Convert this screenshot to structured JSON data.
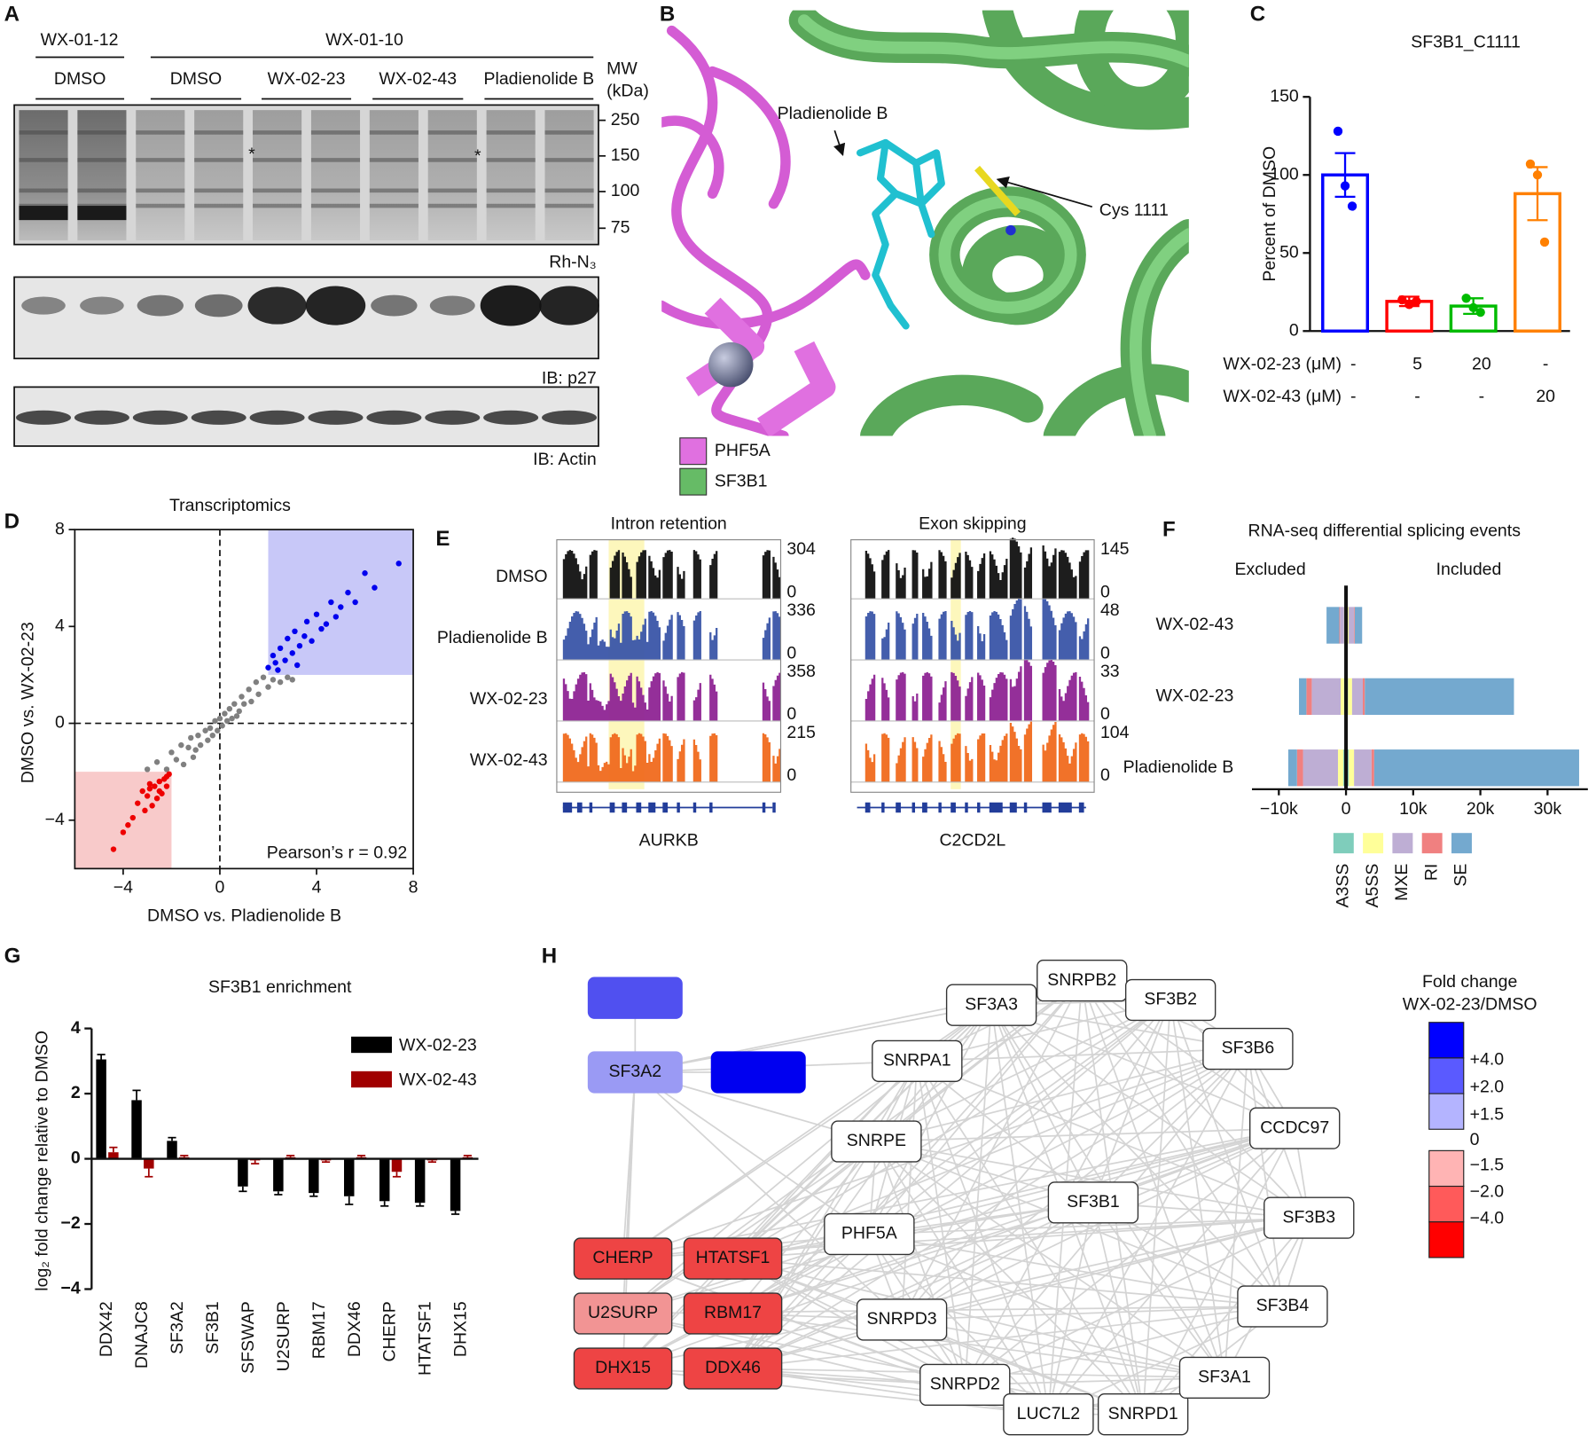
{
  "panel_labels": [
    "A",
    "B",
    "C",
    "D",
    "E",
    "F",
    "G",
    "H"
  ],
  "blot": {
    "top_groups": [
      "WX-01-12",
      "WX-01-10"
    ],
    "treatments": [
      "DMSO",
      "DMSO",
      "WX-02-23",
      "WX-02-43",
      "Pladienolide B"
    ],
    "mw_title": [
      "MW",
      "(kDa)"
    ],
    "mw_ticks": [
      250,
      150,
      100,
      75
    ],
    "markers": [
      "*",
      "*"
    ],
    "blot_labels": [
      "Rh-N₃",
      "IB: p27",
      "IB: Actin"
    ]
  },
  "structure": {
    "labels": [
      "Pladienolide B",
      "Cys 1111"
    ],
    "legend": [
      {
        "name": "PHF5A",
        "color": "#e070e0"
      },
      {
        "name": "SF3B1",
        "color": "#66bb66"
      }
    ]
  },
  "chart_data": [
    {
      "type": "bar",
      "title": "SF3B1_C1111",
      "y_label": "Percent of DMSO",
      "categories": [
        null,
        null,
        null,
        null
      ],
      "values": [
        100,
        19,
        16,
        88
      ],
      "errors": [
        14,
        3,
        5,
        17
      ],
      "points": [
        [
          128,
          93,
          80
        ],
        [
          20,
          17,
          19
        ],
        [
          21,
          15,
          12
        ],
        [
          107,
          100,
          57
        ]
      ],
      "colors": [
        "#0000ff",
        "#ff0000",
        "#00bb00",
        "#ff8000"
      ],
      "ylim": [
        0,
        150
      ],
      "yticks": [
        0,
        50,
        100,
        150
      ],
      "conditions": [
        {
          "name": "WX-02-23 (μM)",
          "values": [
            "-",
            "5",
            "20",
            "-"
          ]
        },
        {
          "name": "WX-02-43 (μM)",
          "values": [
            "-",
            "-",
            "-",
            "20"
          ]
        }
      ]
    },
    {
      "type": "scatter",
      "title": "Transcriptomics",
      "x_label": "DMSO vs. Pladienolide B",
      "y_label": "DMSO vs. WX-02-23",
      "annotation": "Pearson’s r = 0.92",
      "xlim": [
        -6,
        8
      ],
      "ylim": [
        -6,
        8
      ],
      "xticks": [
        {
          "value": -4,
          "label": "−4"
        },
        0,
        4,
        8
      ],
      "yticks": [
        {
          "value": -4,
          "label": "−4"
        },
        0,
        4,
        8
      ],
      "regions": [
        {
          "xlim": [
            2,
            8
          ],
          "ylim": [
            2,
            8
          ],
          "color": "#c8c8f8"
        },
        {
          "xlim": [
            -6,
            -2
          ],
          "ylim": [
            -6,
            -2
          ],
          "color": "#f8caca"
        }
      ],
      "series": [
        {
          "color": "#808080",
          "x": [
            -2.6,
            -2.2,
            -2.0,
            -1.8,
            -1.6,
            -1.5,
            -1.3,
            -1.2,
            -1.0,
            -0.9,
            -0.8,
            -0.6,
            -0.5,
            -0.4,
            -0.3,
            -0.2,
            -0.1,
            0,
            0.1,
            0.2,
            0.3,
            0.4,
            0.5,
            0.6,
            0.8,
            0.9,
            1.0,
            1.2,
            1.3,
            1.5,
            1.6,
            1.8,
            2.0,
            2.2,
            2.5,
            2.8,
            3.0,
            -3.0,
            -1.1,
            0.7
          ],
          "y": [
            -1.6,
            -1.9,
            -1.2,
            -1.5,
            -0.9,
            -1.7,
            -1.0,
            -0.6,
            -1.1,
            -0.5,
            -0.9,
            -0.3,
            -0.7,
            -0.2,
            -0.5,
            0.1,
            -0.3,
            0.2,
            -0.1,
            0.4,
            0.1,
            0.6,
            0.2,
            0.8,
            0.5,
            1.1,
            0.8,
            1.4,
            0.9,
            1.7,
            1.2,
            1.9,
            1.5,
            1.8,
            1.7,
            1.9,
            1.8,
            -1.9,
            -1.4,
            0.3
          ]
        },
        {
          "color": "#0000ee",
          "x": [
            2.0,
            2.2,
            2.4,
            2.5,
            2.7,
            2.8,
            3.0,
            3.1,
            3.3,
            3.5,
            3.6,
            3.8,
            4.0,
            4.2,
            4.4,
            4.6,
            4.8,
            5.0,
            5.3,
            5.6,
            6.0,
            6.4,
            7.4,
            2.3,
            3.2
          ],
          "y": [
            2.3,
            2.8,
            2.2,
            3.1,
            2.6,
            3.5,
            2.9,
            3.8,
            3.2,
            3.6,
            4.2,
            3.4,
            4.5,
            3.9,
            4.1,
            5.0,
            4.4,
            4.8,
            5.4,
            5.0,
            6.2,
            5.6,
            6.6,
            2.5,
            2.4
          ]
        },
        {
          "color": "#ee0000",
          "x": [
            -2.1,
            -2.2,
            -2.3,
            -2.4,
            -2.5,
            -2.6,
            -2.7,
            -2.8,
            -2.9,
            -3.0,
            -3.1,
            -3.2,
            -3.4,
            -3.6,
            -3.8,
            -4.0,
            -4.4,
            -2.2,
            -2.5,
            -2.9
          ],
          "y": [
            -2.1,
            -2.6,
            -2.3,
            -2.9,
            -2.4,
            -3.1,
            -2.6,
            -3.4,
            -2.7,
            -3.0,
            -3.6,
            -2.8,
            -3.3,
            -3.9,
            -4.2,
            -4.5,
            -5.2,
            -2.2,
            -2.8,
            -2.5
          ]
        }
      ]
    },
    {
      "type": "hbar",
      "title": "RNA-seq differential splicing events",
      "side_labels": [
        "Excluded",
        "Included"
      ],
      "categories": [
        "WX-02-43",
        "WX-02-23",
        "Pladienolide B"
      ],
      "xlim": [
        -14000,
        36000
      ],
      "xticks": [
        {
          "value": -10000,
          "label": "−10k"
        },
        0,
        {
          "value": 10000,
          "label": "10k"
        },
        {
          "value": 20000,
          "label": "20k"
        },
        {
          "value": 30000,
          "label": "30k"
        }
      ],
      "series": [
        {
          "name": "A3SS",
          "color": "#7fcdbb",
          "included": [
            100,
            300,
            400
          ],
          "excluded": [
            -100,
            -300,
            -400
          ]
        },
        {
          "name": "A5SS",
          "color": "#ffff99",
          "included": [
            300,
            600,
            800
          ],
          "excluded": [
            -200,
            -500,
            -800
          ]
        },
        {
          "name": "MXE",
          "color": "#beaed4",
          "included": [
            800,
            1600,
            2600
          ],
          "excluded": [
            -600,
            -4300,
            -5200
          ]
        },
        {
          "name": "RI",
          "color": "#f08080",
          "included": [
            100,
            300,
            400
          ],
          "excluded": [
            -100,
            -800,
            -900
          ]
        },
        {
          "name": "SE",
          "color": "#74a9cf",
          "included": [
            1100,
            22200,
            30500
          ],
          "excluded": [
            -1900,
            -1100,
            -1300
          ]
        }
      ]
    },
    {
      "type": "grouped_bar",
      "title": "SF3B1 enrichment",
      "y_label": "log₂ fold change relative to DMSO",
      "categories": [
        "DDX42",
        "DNAJC8",
        "SF3A2",
        "SF3B1",
        "SFSWAP",
        "U2SURP",
        "RBM17",
        "DDX46",
        "CHERP",
        "HTATSF1",
        "DHX15"
      ],
      "ylim": [
        -4,
        4
      ],
      "yticks": [
        {
          "value": -4,
          "label": "−4"
        },
        {
          "value": -2,
          "label": "−2"
        },
        0,
        2,
        4
      ],
      "series": [
        {
          "name": "WX-02-23",
          "color": "#000000",
          "values": [
            3.05,
            1.8,
            0.55,
            null,
            -0.85,
            -1.0,
            -1.05,
            -1.15,
            -1.3,
            -1.35,
            -1.6
          ],
          "errors": [
            0.15,
            0.3,
            0.1,
            null,
            0.15,
            0.1,
            0.1,
            0.25,
            0.15,
            0.1,
            0.1
          ]
        },
        {
          "name": "WX-02-43",
          "color": "#a00000",
          "values": [
            0.2,
            -0.3,
            0.05,
            null,
            -0.05,
            0.05,
            -0.05,
            0.05,
            -0.4,
            -0.05,
            0.05
          ],
          "errors": [
            0.15,
            0.25,
            0.05,
            null,
            0.1,
            0.05,
            0.05,
            0.05,
            0.15,
            0.05,
            0.05
          ]
        }
      ]
    }
  ],
  "tracks": {
    "row_labels": [
      "DMSO",
      "Pladienolide B",
      "WX-02-23",
      "WX-02-43"
    ],
    "row_colors": [
      "#111111",
      "#3a55a8",
      "#8e2494",
      "#f06a1e"
    ],
    "columns": [
      {
        "title": "Intron retention",
        "gene": "AURKB",
        "scale_max": [
          304,
          336,
          358,
          215
        ],
        "scale_min": [
          0,
          0,
          0,
          0
        ]
      },
      {
        "title": "Exon skipping",
        "gene": "C2CD2L",
        "scale_max": [
          145,
          48,
          33,
          104
        ],
        "scale_min": [
          0,
          0,
          0,
          0
        ]
      }
    ]
  },
  "network": {
    "nodes": [
      {
        "label": null,
        "color": "#5050f0"
      },
      {
        "label": "SF3A2",
        "color": "#9a9af4"
      },
      {
        "label": null,
        "color": "#0000f0"
      },
      {
        "label": "SNRPA1",
        "color": "#ffffff"
      },
      {
        "label": "SF3A3",
        "color": "#ffffff"
      },
      {
        "label": "SNRPB2",
        "color": "#ffffff"
      },
      {
        "label": "SF3B2",
        "color": "#ffffff"
      },
      {
        "label": "SF3B6",
        "color": "#ffffff"
      },
      {
        "label": "CCDC97",
        "color": "#ffffff"
      },
      {
        "label": "SNRPE",
        "color": "#ffffff"
      },
      {
        "label": "SF3B1",
        "color": "#ffffff"
      },
      {
        "label": "SF3B3",
        "color": "#ffffff"
      },
      {
        "label": "PHF5A",
        "color": "#ffffff"
      },
      {
        "label": "SF3B4",
        "color": "#ffffff"
      },
      {
        "label": "SNRPD3",
        "color": "#ffffff"
      },
      {
        "label": "SNRPD2",
        "color": "#ffffff"
      },
      {
        "label": "LUC7L2",
        "color": "#ffffff"
      },
      {
        "label": "SNRPD1",
        "color": "#ffffff"
      },
      {
        "label": "SF3A1",
        "color": "#ffffff"
      },
      {
        "label": "CHERP",
        "color": "#ee4444"
      },
      {
        "label": "HTATSF1",
        "color": "#ee4444"
      },
      {
        "label": "U2SURP",
        "color": "#f29494"
      },
      {
        "label": "RBM17",
        "color": "#ee4444"
      },
      {
        "label": "DHX15",
        "color": "#ee4444"
      },
      {
        "label": "DDX46",
        "color": "#ee4444"
      }
    ],
    "legend": {
      "title": [
        "Fold change",
        "WX-02-23/DMSO"
      ],
      "zero_label": "0",
      "positive": [
        {
          "label": "+4.0",
          "color": "#0000ff"
        },
        {
          "label": "+2.0",
          "color": "#5a5aff"
        },
        {
          "label": "+1.5",
          "color": "#b4b4ff"
        }
      ],
      "negative": [
        {
          "label": "−1.5",
          "color": "#ffb4b4"
        },
        {
          "label": "−2.0",
          "color": "#ff5a5a"
        },
        {
          "label": "−4.0",
          "color": "#ff0000"
        }
      ]
    }
  }
}
